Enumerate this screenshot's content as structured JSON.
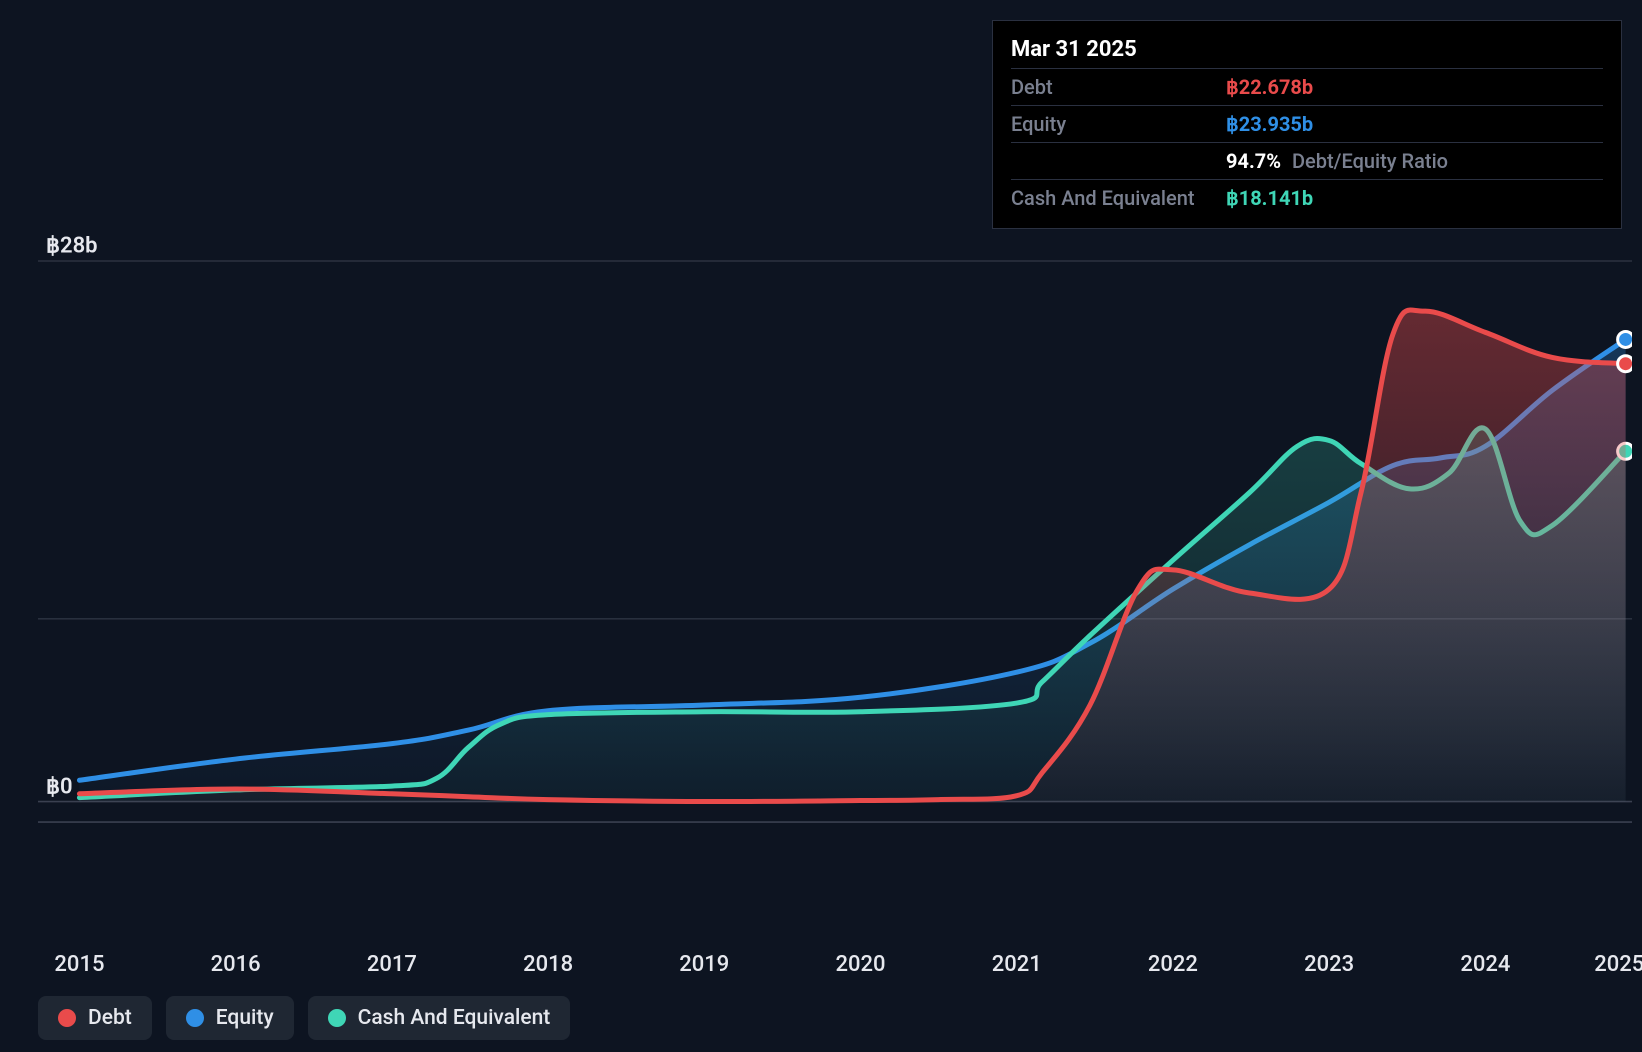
{
  "chart": {
    "type": "area",
    "background_color": "#0d1421",
    "grid_color": "#3a4050",
    "axis_color": "#6a7080",
    "line_width": 5,
    "currency_symbol": "฿",
    "x_axis": {
      "labels": [
        "2015",
        "2016",
        "2017",
        "2018",
        "2019",
        "2020",
        "2021",
        "2022",
        "2023",
        "2024",
        "2025"
      ],
      "positions_pct": [
        2.6,
        12.4,
        22.2,
        32.0,
        41.8,
        51.6,
        61.4,
        71.2,
        81.0,
        90.8,
        99.2
      ],
      "label_fontsize": 22,
      "label_color": "#e6e8ee"
    },
    "y_axis": {
      "ticks": [
        {
          "label": "฿28b",
          "value": 28,
          "pos_pct": 28.0
        },
        {
          "label": "฿0",
          "value": 0,
          "pos_pct": 86.0
        }
      ],
      "gridlines_at": [
        28.0,
        66.4,
        86.0,
        88.2
      ],
      "label_fontsize": 22,
      "label_color": "#e6e8ee",
      "ylim": [
        -1,
        28
      ]
    },
    "series": {
      "debt": {
        "label": "Debt",
        "color": "#e94b4b",
        "fill": "#e94b4b",
        "fill_opacity": 0.4,
        "end_marker": true,
        "x_pct": [
          2.6,
          12.4,
          22.2,
          27.0,
          32.0,
          41.8,
          51.6,
          56.5,
          61.4,
          63.0,
          66.0,
          69.0,
          71.2,
          76.0,
          81.0,
          83.0,
          85.0,
          87.0,
          90.8,
          95.0,
          99.6
        ],
        "values": [
          0.4,
          0.65,
          0.4,
          0.25,
          0.1,
          0.0,
          0.05,
          0.1,
          0.3,
          1.5,
          5.0,
          11.0,
          12.0,
          10.8,
          11.0,
          16.0,
          24.2,
          25.4,
          24.3,
          23.0,
          22.678
        ]
      },
      "equity": {
        "label": "Equity",
        "color": "#2f8fe6",
        "fill": "#2f8fe6",
        "fill_opacity": 0.28,
        "end_marker": true,
        "x_pct": [
          2.6,
          12.4,
          22.2,
          27.0,
          32.0,
          41.8,
          51.6,
          61.4,
          66.0,
          71.2,
          76.0,
          81.0,
          85.0,
          88.0,
          90.8,
          95.0,
          99.6
        ],
        "values": [
          1.1,
          2.2,
          3.0,
          3.7,
          4.7,
          5.0,
          5.4,
          6.7,
          8.2,
          11.0,
          13.3,
          15.5,
          17.4,
          17.8,
          18.4,
          21.3,
          23.935
        ]
      },
      "cash": {
        "label": "Cash And Equivalent",
        "color": "#3fd6b6",
        "fill": "#3fd6b6",
        "fill_opacity": 0.22,
        "end_marker": true,
        "x_pct": [
          2.6,
          12.4,
          22.2,
          25.0,
          27.0,
          29.0,
          32.0,
          41.8,
          51.6,
          61.4,
          63.0,
          66.0,
          71.2,
          76.0,
          79.0,
          81.0,
          83.0,
          86.0,
          88.5,
          90.8,
          93.0,
          95.0,
          99.6
        ],
        "values": [
          0.2,
          0.6,
          0.8,
          1.2,
          2.8,
          4.0,
          4.5,
          4.65,
          4.65,
          5.1,
          6.2,
          8.6,
          12.5,
          16.0,
          18.4,
          18.7,
          17.5,
          16.2,
          17.0,
          19.3,
          14.5,
          14.3,
          18.141
        ]
      }
    },
    "tooltip": {
      "date": "Mar 31 2025",
      "rows": [
        {
          "label": "Debt",
          "value": "22.678b",
          "color": "#e94b4b",
          "currency": "฿"
        },
        {
          "label": "Equity",
          "value": "23.935b",
          "color": "#2f8fe6",
          "currency": "฿"
        },
        {
          "label": "",
          "value": "94.7%",
          "extra": "Debt/Equity Ratio",
          "color": "#ffffff",
          "currency": ""
        },
        {
          "label": "Cash And Equivalent",
          "value": "18.141b",
          "color": "#3fd6b6",
          "currency": "฿"
        }
      ]
    },
    "legend": {
      "background": "#1f2733",
      "items": [
        {
          "label": "Debt",
          "color": "#e94b4b"
        },
        {
          "label": "Equity",
          "color": "#2f8fe6"
        },
        {
          "label": "Cash And Equivalent",
          "color": "#3fd6b6"
        }
      ]
    }
  }
}
